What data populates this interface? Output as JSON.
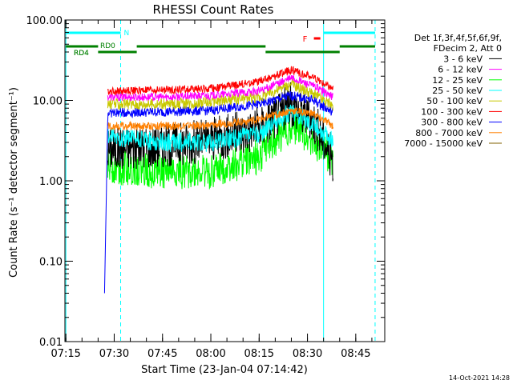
{
  "chart_data": {
    "type": "line",
    "title": "RHESSI Count Rates",
    "xlabel": "Start Time (23-Jan-04 07:14:42)",
    "ylabel": "Count Rate (s⁻¹ detector segment⁻¹)",
    "yscale": "log",
    "ylim": [
      0.01,
      100
    ],
    "xlim": [
      "07:14:42",
      "08:54:00"
    ],
    "x_ticks": [
      "07:15",
      "07:30",
      "07:45",
      "08:00",
      "08:15",
      "08:30",
      "08:45"
    ],
    "y_ticks": [
      "0.01",
      "0.10",
      "1.00",
      "10.00",
      "100.00"
    ],
    "legend_header": [
      "Det 1f,3f,4f,5f,6f,9f,",
      "FDecim 2, Att 0"
    ],
    "legend_placement": "right",
    "grid": false,
    "series": [
      {
        "name": "3 - 6 keV",
        "color": "#000000",
        "start": "07:28",
        "end": "08:38",
        "points": [
          [
            "07:28",
            2.5
          ],
          [
            "07:45",
            2.8
          ],
          [
            "08:00",
            3.2
          ],
          [
            "08:15",
            4.5
          ],
          [
            "08:25",
            9.0
          ],
          [
            "08:32",
            5.5
          ],
          [
            "08:38",
            1.8
          ]
        ]
      },
      {
        "name": "6 - 12 keV",
        "color": "#ff00ff",
        "start": "07:28",
        "end": "08:38",
        "points": [
          [
            "07:28",
            11.0
          ],
          [
            "07:45",
            11.0
          ],
          [
            "08:00",
            11.5
          ],
          [
            "08:15",
            13.0
          ],
          [
            "08:25",
            19.0
          ],
          [
            "08:32",
            15.0
          ],
          [
            "08:38",
            11.0
          ]
        ]
      },
      {
        "name": "12 - 25 keV",
        "color": "#00ff00",
        "start": "07:28",
        "end": "08:38",
        "points": [
          [
            "07:28",
            1.5
          ],
          [
            "07:45",
            1.3
          ],
          [
            "08:00",
            1.3
          ],
          [
            "08:15",
            2.0
          ],
          [
            "08:25",
            5.0
          ],
          [
            "08:32",
            3.2
          ],
          [
            "08:38",
            1.8
          ]
        ]
      },
      {
        "name": "25 - 50 keV",
        "color": "#00ffff",
        "start": "07:28",
        "end": "08:38",
        "points": [
          [
            "07:28",
            3.5
          ],
          [
            "07:45",
            3.0
          ],
          [
            "08:00",
            3.0
          ],
          [
            "08:15",
            3.8
          ],
          [
            "08:25",
            7.5
          ],
          [
            "08:32",
            5.0
          ],
          [
            "08:38",
            3.0
          ]
        ]
      },
      {
        "name": "50 - 100 keV",
        "color": "#c8c800",
        "start": "07:28",
        "end": "08:38",
        "points": [
          [
            "07:28",
            9.0
          ],
          [
            "07:45",
            9.0
          ],
          [
            "08:00",
            9.5
          ],
          [
            "08:15",
            11.0
          ],
          [
            "08:25",
            16.0
          ],
          [
            "08:32",
            12.0
          ],
          [
            "08:38",
            8.5
          ]
        ]
      },
      {
        "name": "100 - 300 keV",
        "color": "#ff0000",
        "start": "07:28",
        "end": "08:38",
        "points": [
          [
            "07:28",
            13.0
          ],
          [
            "07:45",
            13.5
          ],
          [
            "08:00",
            14.0
          ],
          [
            "08:15",
            17.0
          ],
          [
            "08:25",
            24.0
          ],
          [
            "08:32",
            19.0
          ],
          [
            "08:38",
            14.0
          ]
        ]
      },
      {
        "name": "300 - 800 keV",
        "color": "#0000ff",
        "start": "07:27",
        "end": "08:38",
        "points": [
          [
            "07:27",
            0.04
          ],
          [
            "07:28",
            7.0
          ],
          [
            "07:45",
            7.2
          ],
          [
            "08:00",
            7.5
          ],
          [
            "08:15",
            9.0
          ],
          [
            "08:25",
            11.5
          ],
          [
            "08:32",
            10.0
          ],
          [
            "08:38",
            7.0
          ]
        ]
      },
      {
        "name": "800 - 7000 keV",
        "color": "#ff8000",
        "start": "07:28",
        "end": "08:38",
        "points": [
          [
            "07:28",
            4.8
          ],
          [
            "07:45",
            4.8
          ],
          [
            "08:00",
            4.9
          ],
          [
            "08:15",
            5.8
          ],
          [
            "08:25",
            7.5
          ],
          [
            "08:32",
            6.8
          ],
          [
            "08:38",
            4.8
          ]
        ]
      },
      {
        "name": "7000 - 15000 keV",
        "color": "#806000",
        "start": "07:28",
        "end": "08:38",
        "points": []
      }
    ],
    "annotations": {
      "vertical_lines": [
        {
          "x": "07:15",
          "color": "#00ffff",
          "style": "solid"
        },
        {
          "x": "07:32",
          "color": "#00ffff",
          "style": "dashed"
        },
        {
          "x": "08:35",
          "color": "#00ffff",
          "style": "solid"
        },
        {
          "x": "08:51",
          "color": "#00ffff",
          "style": "dashed"
        }
      ],
      "night_bars": [
        {
          "label": "N",
          "start": "07:15",
          "end": "07:32",
          "color": "#00ffff"
        },
        {
          "label": "",
          "start": "08:35",
          "end": "08:51",
          "color": "#00ffff"
        }
      ],
      "saa_bars": [
        {
          "label": "RD4",
          "start": "07:15",
          "end": "07:25",
          "level": 1,
          "color": "#008000"
        },
        {
          "label": "RD4",
          "start": "07:25",
          "end": "07:37",
          "level": 2,
          "color": "#008000"
        },
        {
          "label": "RD0",
          "start": "07:37",
          "end": "08:17",
          "level": 1,
          "color": "#008000"
        },
        {
          "label": "",
          "start": "08:17",
          "end": "08:40",
          "level": 2,
          "color": "#008000"
        },
        {
          "label": "",
          "start": "08:40",
          "end": "08:51",
          "level": 1,
          "color": "#008000"
        }
      ],
      "flare_marker": {
        "label": "F",
        "start": "08:32",
        "end": "08:34",
        "color": "#ff0000"
      }
    }
  },
  "footer": {
    "timestamp": "14-Oct-2021 14:28"
  }
}
